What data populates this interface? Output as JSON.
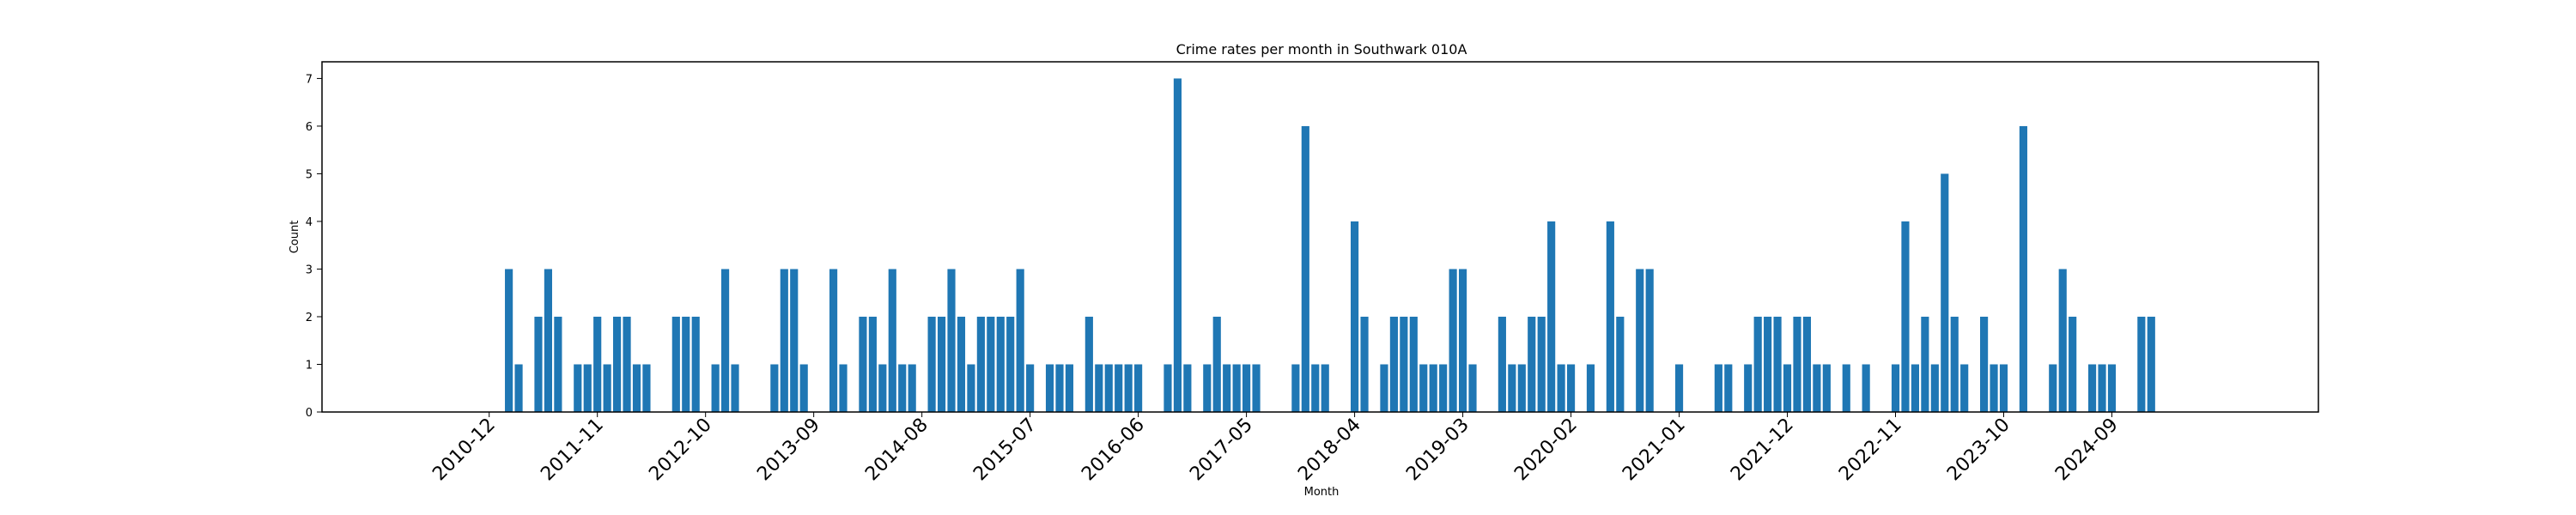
{
  "chart_data": {
    "type": "bar",
    "title": "Crime rates per month in Southwark 010A",
    "xlabel": "Month",
    "ylabel": "Count",
    "ylim": [
      0,
      7.35
    ],
    "yticks": [
      0,
      1,
      2,
      3,
      4,
      5,
      6,
      7
    ],
    "xticks": [
      "2010-12",
      "2011-11",
      "2012-10",
      "2013-09",
      "2014-08",
      "2015-07",
      "2016-06",
      "2017-05",
      "2018-04",
      "2019-03",
      "2020-02",
      "2021-01",
      "2021-12",
      "2022-11",
      "2023-10",
      "2024-09"
    ],
    "grid": false,
    "legend": "none",
    "bar_color": "#1f77b4",
    "data": [
      {
        "x": "2011-02",
        "y": 3
      },
      {
        "x": "2011-03",
        "y": 1
      },
      {
        "x": "2011-05",
        "y": 2
      },
      {
        "x": "2011-06",
        "y": 3
      },
      {
        "x": "2011-07",
        "y": 2
      },
      {
        "x": "2011-09",
        "y": 1
      },
      {
        "x": "2011-10",
        "y": 1
      },
      {
        "x": "2011-11",
        "y": 2
      },
      {
        "x": "2011-12",
        "y": 1
      },
      {
        "x": "2012-01",
        "y": 2
      },
      {
        "x": "2012-02",
        "y": 2
      },
      {
        "x": "2012-03",
        "y": 1
      },
      {
        "x": "2012-04",
        "y": 1
      },
      {
        "x": "2012-07",
        "y": 2
      },
      {
        "x": "2012-08",
        "y": 2
      },
      {
        "x": "2012-09",
        "y": 2
      },
      {
        "x": "2012-11",
        "y": 1
      },
      {
        "x": "2012-12",
        "y": 3
      },
      {
        "x": "2013-01",
        "y": 1
      },
      {
        "x": "2013-05",
        "y": 1
      },
      {
        "x": "2013-06",
        "y": 3
      },
      {
        "x": "2013-07",
        "y": 3
      },
      {
        "x": "2013-08",
        "y": 1
      },
      {
        "x": "2013-11",
        "y": 3
      },
      {
        "x": "2013-12",
        "y": 1
      },
      {
        "x": "2014-02",
        "y": 2
      },
      {
        "x": "2014-03",
        "y": 2
      },
      {
        "x": "2014-04",
        "y": 1
      },
      {
        "x": "2014-05",
        "y": 3
      },
      {
        "x": "2014-06",
        "y": 1
      },
      {
        "x": "2014-07",
        "y": 1
      },
      {
        "x": "2014-09",
        "y": 2
      },
      {
        "x": "2014-10",
        "y": 2
      },
      {
        "x": "2014-11",
        "y": 3
      },
      {
        "x": "2014-12",
        "y": 2
      },
      {
        "x": "2015-01",
        "y": 1
      },
      {
        "x": "2015-02",
        "y": 2
      },
      {
        "x": "2015-03",
        "y": 2
      },
      {
        "x": "2015-04",
        "y": 2
      },
      {
        "x": "2015-05",
        "y": 2
      },
      {
        "x": "2015-06",
        "y": 3
      },
      {
        "x": "2015-07",
        "y": 1
      },
      {
        "x": "2015-09",
        "y": 1
      },
      {
        "x": "2015-10",
        "y": 1
      },
      {
        "x": "2015-11",
        "y": 1
      },
      {
        "x": "2016-01",
        "y": 2
      },
      {
        "x": "2016-02",
        "y": 1
      },
      {
        "x": "2016-03",
        "y": 1
      },
      {
        "x": "2016-04",
        "y": 1
      },
      {
        "x": "2016-05",
        "y": 1
      },
      {
        "x": "2016-06",
        "y": 1
      },
      {
        "x": "2016-09",
        "y": 1
      },
      {
        "x": "2016-10",
        "y": 7
      },
      {
        "x": "2016-11",
        "y": 1
      },
      {
        "x": "2017-01",
        "y": 1
      },
      {
        "x": "2017-02",
        "y": 2
      },
      {
        "x": "2017-03",
        "y": 1
      },
      {
        "x": "2017-04",
        "y": 1
      },
      {
        "x": "2017-05",
        "y": 1
      },
      {
        "x": "2017-06",
        "y": 1
      },
      {
        "x": "2017-10",
        "y": 1
      },
      {
        "x": "2017-11",
        "y": 6
      },
      {
        "x": "2017-12",
        "y": 1
      },
      {
        "x": "2018-01",
        "y": 1
      },
      {
        "x": "2018-04",
        "y": 4
      },
      {
        "x": "2018-05",
        "y": 2
      },
      {
        "x": "2018-07",
        "y": 1
      },
      {
        "x": "2018-08",
        "y": 2
      },
      {
        "x": "2018-09",
        "y": 2
      },
      {
        "x": "2018-10",
        "y": 2
      },
      {
        "x": "2018-11",
        "y": 1
      },
      {
        "x": "2018-12",
        "y": 1
      },
      {
        "x": "2019-01",
        "y": 1
      },
      {
        "x": "2019-02",
        "y": 3
      },
      {
        "x": "2019-03",
        "y": 3
      },
      {
        "x": "2019-04",
        "y": 1
      },
      {
        "x": "2019-07",
        "y": 2
      },
      {
        "x": "2019-08",
        "y": 1
      },
      {
        "x": "2019-09",
        "y": 1
      },
      {
        "x": "2019-10",
        "y": 2
      },
      {
        "x": "2019-11",
        "y": 2
      },
      {
        "x": "2019-12",
        "y": 4
      },
      {
        "x": "2020-01",
        "y": 1
      },
      {
        "x": "2020-02",
        "y": 1
      },
      {
        "x": "2020-04",
        "y": 1
      },
      {
        "x": "2020-06",
        "y": 4
      },
      {
        "x": "2020-07",
        "y": 2
      },
      {
        "x": "2020-09",
        "y": 3
      },
      {
        "x": "2020-10",
        "y": 3
      },
      {
        "x": "2021-01",
        "y": 1
      },
      {
        "x": "2021-05",
        "y": 1
      },
      {
        "x": "2021-06",
        "y": 1
      },
      {
        "x": "2021-08",
        "y": 1
      },
      {
        "x": "2021-09",
        "y": 2
      },
      {
        "x": "2021-10",
        "y": 2
      },
      {
        "x": "2021-11",
        "y": 2
      },
      {
        "x": "2021-12",
        "y": 1
      },
      {
        "x": "2022-01",
        "y": 2
      },
      {
        "x": "2022-02",
        "y": 2
      },
      {
        "x": "2022-03",
        "y": 1
      },
      {
        "x": "2022-04",
        "y": 1
      },
      {
        "x": "2022-06",
        "y": 1
      },
      {
        "x": "2022-08",
        "y": 1
      },
      {
        "x": "2022-11",
        "y": 1
      },
      {
        "x": "2022-12",
        "y": 4
      },
      {
        "x": "2023-01",
        "y": 1
      },
      {
        "x": "2023-02",
        "y": 2
      },
      {
        "x": "2023-03",
        "y": 1
      },
      {
        "x": "2023-04",
        "y": 5
      },
      {
        "x": "2023-05",
        "y": 2
      },
      {
        "x": "2023-06",
        "y": 1
      },
      {
        "x": "2023-08",
        "y": 2
      },
      {
        "x": "2023-09",
        "y": 1
      },
      {
        "x": "2023-10",
        "y": 1
      },
      {
        "x": "2023-12",
        "y": 6
      },
      {
        "x": "2024-03",
        "y": 1
      },
      {
        "x": "2024-04",
        "y": 3
      },
      {
        "x": "2024-05",
        "y": 2
      },
      {
        "x": "2024-07",
        "y": 1
      },
      {
        "x": "2024-08",
        "y": 1
      },
      {
        "x": "2024-09",
        "y": 1
      },
      {
        "x": "2024-12",
        "y": 2
      },
      {
        "x": "2025-01",
        "y": 2
      }
    ]
  }
}
